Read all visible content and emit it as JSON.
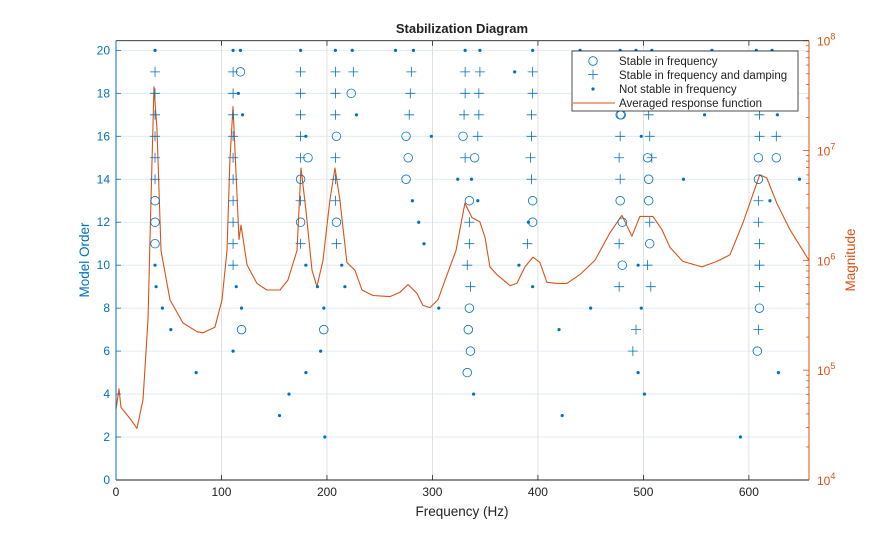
{
  "chart_data": {
    "type": "scatter",
    "title": "Stabilization Diagram",
    "xlabel": "Frequency (Hz)",
    "ylabel_left": "Model Order",
    "ylabel_right": "Magnitude",
    "xlim": [
      0,
      657
    ],
    "ylim_left": [
      0,
      20.45
    ],
    "ylim_right_log10": [
      4,
      8
    ],
    "right_axis_scale": "log",
    "grid": true,
    "legend_placement": "top-right",
    "x_ticks": [
      0,
      100,
      200,
      300,
      400,
      500,
      600
    ],
    "y_ticks_left": [
      0,
      2,
      4,
      6,
      8,
      10,
      12,
      14,
      16,
      18,
      20
    ],
    "y_ticks_right": {
      "base": "10",
      "exponents": [
        "4",
        "5",
        "6",
        "7",
        "8"
      ]
    },
    "colors": {
      "markers": "#0072BD",
      "response": "#D95319",
      "left_axis": "#0072BD",
      "right_axis": "#D95319"
    },
    "legend": [
      {
        "label": "Stable in frequency",
        "marker": "circle"
      },
      {
        "label": "Stable in frequency and damping",
        "marker": "plus"
      },
      {
        "label": "Not stable in frequency",
        "marker": "dot"
      },
      {
        "label": "Averaged response function",
        "marker": "line"
      }
    ],
    "stable_in_frequency": [
      [
        118,
        19
      ],
      [
        223,
        18
      ],
      [
        209,
        16
      ],
      [
        182,
        15
      ],
      [
        175,
        14
      ],
      [
        37,
        13
      ],
      [
        37,
        12
      ],
      [
        175,
        12
      ],
      [
        209,
        12
      ],
      [
        37,
        11
      ],
      [
        119,
        7
      ],
      [
        197,
        7
      ],
      [
        275,
        16
      ],
      [
        329,
        16
      ],
      [
        277,
        15
      ],
      [
        340,
        15
      ],
      [
        275,
        14
      ],
      [
        335,
        13
      ],
      [
        395,
        13
      ],
      [
        395,
        12
      ],
      [
        335,
        8
      ],
      [
        334,
        7
      ],
      [
        336,
        6
      ],
      [
        333,
        5
      ],
      [
        478,
        17
      ],
      [
        479,
        17
      ],
      [
        504,
        15
      ],
      [
        609,
        15
      ],
      [
        626,
        15
      ],
      [
        505,
        14
      ],
      [
        609,
        14
      ],
      [
        478,
        13
      ],
      [
        505,
        13
      ],
      [
        480,
        12
      ],
      [
        506,
        11
      ],
      [
        480,
        10
      ],
      [
        610,
        8
      ],
      [
        608,
        6
      ]
    ],
    "stable_in_frequency_and_damping": [
      [
        37,
        19
      ],
      [
        111,
        19
      ],
      [
        175,
        19
      ],
      [
        208,
        19
      ],
      [
        225,
        19
      ],
      [
        280,
        19
      ],
      [
        331,
        19
      ],
      [
        345,
        19
      ],
      [
        395,
        19
      ],
      [
        37,
        18
      ],
      [
        111,
        18
      ],
      [
        175,
        18
      ],
      [
        208,
        18
      ],
      [
        279,
        18
      ],
      [
        331,
        18
      ],
      [
        344,
        18
      ],
      [
        395,
        18
      ],
      [
        37,
        17
      ],
      [
        111,
        17
      ],
      [
        175,
        17
      ],
      [
        208,
        17
      ],
      [
        278,
        17
      ],
      [
        330,
        17
      ],
      [
        344,
        17
      ],
      [
        394,
        17
      ],
      [
        505,
        17
      ],
      [
        610,
        17
      ],
      [
        37,
        16
      ],
      [
        111,
        16
      ],
      [
        175,
        16
      ],
      [
        343,
        16
      ],
      [
        394,
        16
      ],
      [
        478,
        16
      ],
      [
        506,
        16
      ],
      [
        610,
        16
      ],
      [
        626,
        16
      ],
      [
        37,
        15
      ],
      [
        111,
        15
      ],
      [
        175,
        15
      ],
      [
        208,
        15
      ],
      [
        331,
        15
      ],
      [
        393,
        15
      ],
      [
        477,
        15
      ],
      [
        508,
        15
      ],
      [
        37,
        14
      ],
      [
        111,
        14
      ],
      [
        208,
        14
      ],
      [
        394,
        14
      ],
      [
        478,
        14
      ],
      [
        111,
        13
      ],
      [
        175,
        13
      ],
      [
        208,
        13
      ],
      [
        609,
        13
      ],
      [
        111,
        12
      ],
      [
        335,
        12
      ],
      [
        506,
        12
      ],
      [
        609,
        12
      ],
      [
        111,
        11
      ],
      [
        175,
        11
      ],
      [
        209,
        11
      ],
      [
        335,
        11
      ],
      [
        390,
        11
      ],
      [
        477,
        11
      ],
      [
        610,
        11
      ],
      [
        111,
        10
      ],
      [
        333,
        10
      ],
      [
        504,
        10
      ],
      [
        610,
        10
      ],
      [
        336,
        9
      ],
      [
        477,
        9
      ],
      [
        507,
        9
      ],
      [
        610,
        9
      ],
      [
        493,
        7
      ],
      [
        609,
        7
      ],
      [
        490,
        6
      ]
    ],
    "not_stable_in_frequency": [
      [
        37,
        20
      ],
      [
        111,
        20
      ],
      [
        118,
        20
      ],
      [
        175,
        20
      ],
      [
        208,
        20
      ],
      [
        224,
        20
      ],
      [
        265,
        20
      ],
      [
        282,
        20
      ],
      [
        331,
        20
      ],
      [
        345,
        20
      ],
      [
        395,
        20
      ],
      [
        440,
        20
      ],
      [
        478,
        20
      ],
      [
        493,
        20
      ],
      [
        508,
        20
      ],
      [
        565,
        20
      ],
      [
        607,
        20
      ],
      [
        622,
        20
      ],
      [
        378,
        19
      ],
      [
        116,
        18
      ],
      [
        120,
        17
      ],
      [
        228,
        17
      ],
      [
        558,
        17
      ],
      [
        627,
        17
      ],
      [
        180,
        16
      ],
      [
        299,
        16
      ],
      [
        498,
        16
      ],
      [
        324,
        14
      ],
      [
        337,
        14
      ],
      [
        538,
        14
      ],
      [
        648,
        14
      ],
      [
        281,
        13
      ],
      [
        343,
        13
      ],
      [
        620,
        13
      ],
      [
        287,
        12
      ],
      [
        391,
        12
      ],
      [
        292,
        11
      ],
      [
        37,
        10
      ],
      [
        180,
        10
      ],
      [
        214,
        10
      ],
      [
        382,
        10
      ],
      [
        495,
        10
      ],
      [
        38,
        9
      ],
      [
        114,
        9
      ],
      [
        191,
        9
      ],
      [
        217,
        9
      ],
      [
        395,
        9
      ],
      [
        44,
        8
      ],
      [
        119,
        8
      ],
      [
        197,
        8
      ],
      [
        306,
        8
      ],
      [
        450,
        8
      ],
      [
        498,
        8
      ],
      [
        52,
        7
      ],
      [
        420,
        7
      ],
      [
        111,
        6
      ],
      [
        194,
        6
      ],
      [
        76,
        5
      ],
      [
        180,
        5
      ],
      [
        495,
        5
      ],
      [
        628,
        5
      ],
      [
        164,
        4
      ],
      [
        339,
        4
      ],
      [
        501,
        4
      ],
      [
        155,
        3
      ],
      [
        423,
        3
      ],
      [
        198,
        2
      ],
      [
        592,
        2
      ]
    ],
    "averaged_response_function_log10": [
      [
        0,
        4.64
      ],
      [
        2.8,
        4.83
      ],
      [
        4.7,
        4.66
      ],
      [
        13.3,
        4.56
      ],
      [
        19.9,
        4.47
      ],
      [
        25.6,
        4.73
      ],
      [
        30.3,
        5.46
      ],
      [
        33.2,
        6.55
      ],
      [
        36,
        7.58
      ],
      [
        38.9,
        7.19
      ],
      [
        42.7,
        6.09
      ],
      [
        51.2,
        5.64
      ],
      [
        63.5,
        5.43
      ],
      [
        76.8,
        5.35
      ],
      [
        82.5,
        5.34
      ],
      [
        93.8,
        5.39
      ],
      [
        100.5,
        5.64
      ],
      [
        105.2,
        6.09
      ],
      [
        108,
        6.91
      ],
      [
        110.9,
        7.4
      ],
      [
        113.7,
        6.82
      ],
      [
        116.6,
        6.19
      ],
      [
        118.5,
        6.32
      ],
      [
        124.2,
        5.96
      ],
      [
        133.6,
        5.79
      ],
      [
        143.1,
        5.73
      ],
      [
        155.5,
        5.73
      ],
      [
        163,
        5.82
      ],
      [
        171.6,
        6.09
      ],
      [
        175.4,
        6.84
      ],
      [
        180,
        6.46
      ],
      [
        185.8,
        5.91
      ],
      [
        190.5,
        5.76
      ],
      [
        196.2,
        6.0
      ],
      [
        202.8,
        6.55
      ],
      [
        207.6,
        6.84
      ],
      [
        212.3,
        6.55
      ],
      [
        218.9,
        5.98
      ],
      [
        226.5,
        5.91
      ],
      [
        233.2,
        5.73
      ],
      [
        243.6,
        5.68
      ],
      [
        259.7,
        5.67
      ],
      [
        269.2,
        5.71
      ],
      [
        276.8,
        5.78
      ],
      [
        285.3,
        5.7
      ],
      [
        291,
        5.59
      ],
      [
        297.6,
        5.57
      ],
      [
        305.2,
        5.64
      ],
      [
        316.6,
        5.94
      ],
      [
        322.3,
        6.09
      ],
      [
        330.8,
        6.52
      ],
      [
        337.4,
        6.39
      ],
      [
        345,
        6.35
      ],
      [
        349.8,
        6.21
      ],
      [
        354.5,
        5.94
      ],
      [
        361.1,
        5.87
      ],
      [
        373.5,
        5.77
      ],
      [
        380.1,
        5.79
      ],
      [
        387.7,
        5.94
      ],
      [
        395.3,
        6.03
      ],
      [
        401.9,
        5.98
      ],
      [
        408.5,
        5.8
      ],
      [
        418,
        5.79
      ],
      [
        427.5,
        5.79
      ],
      [
        439.8,
        5.87
      ],
      [
        454,
        6.0
      ],
      [
        468.2,
        6.25
      ],
      [
        479.6,
        6.41
      ],
      [
        489.1,
        6.22
      ],
      [
        496.7,
        6.4
      ],
      [
        509,
        6.4
      ],
      [
        517.5,
        6.28
      ],
      [
        525.1,
        6.12
      ],
      [
        537.4,
        5.99
      ],
      [
        555.5,
        5.94
      ],
      [
        569.7,
        5.99
      ],
      [
        582,
        6.05
      ],
      [
        594.3,
        6.34
      ],
      [
        610.4,
        6.78
      ],
      [
        617,
        6.75
      ],
      [
        626.5,
        6.52
      ],
      [
        638.9,
        6.28
      ],
      [
        657,
        6.0
      ]
    ]
  }
}
